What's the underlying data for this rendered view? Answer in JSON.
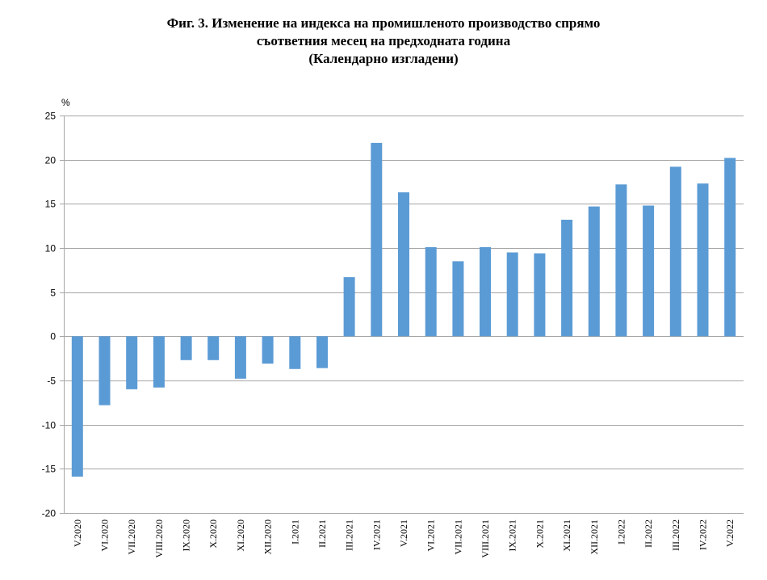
{
  "chart_data": {
    "type": "bar",
    "title": "Фиг. 3. Изменение на индекса на промишленото производство спрямо съответния месец на предходната година (Календарно изгладени)",
    "title_lines": [
      "Фиг. 3. Изменение на индекса на промишленото производство спрямо",
      "съответния месец на предходната година",
      "(Календарно изгладени)"
    ],
    "ylabel": "%",
    "xlabel": "",
    "ylim": [
      -20,
      25
    ],
    "yticks": [
      25,
      20,
      15,
      10,
      5,
      0,
      -5,
      -10,
      -15,
      -20
    ],
    "grid": true,
    "legend": "none",
    "bar_color": "#5b9bd5",
    "categories": [
      "V.2020",
      "VI.2020",
      "VII.2020",
      "VIII.2020",
      "IX.2020",
      "X.2020",
      "XI.2020",
      "XII.2020",
      "I.2021",
      "II.2021",
      "III.2021",
      "IV.2021",
      "V.2021",
      "VI.2021",
      "VII.2021",
      "VIII.2021",
      "IX.2021",
      "X.2021",
      "XI.2021",
      "XII.2021",
      "I.2022",
      "II.2022",
      "III.2022",
      "IV.2022",
      "V.2022"
    ],
    "values": [
      -15.9,
      -7.8,
      -6.0,
      -5.8,
      -2.7,
      -2.7,
      -4.8,
      -3.1,
      -3.7,
      -3.6,
      6.7,
      21.9,
      16.3,
      10.1,
      8.5,
      10.1,
      9.5,
      9.4,
      13.2,
      14.7,
      17.2,
      14.8,
      19.2,
      17.3,
      20.2
    ]
  }
}
